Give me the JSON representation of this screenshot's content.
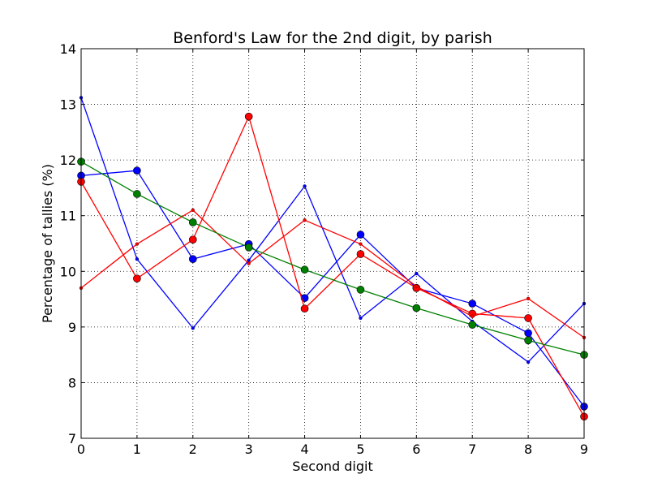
{
  "chart_data": {
    "type": "line",
    "title": "Benford's Law for the 2nd digit, by parish",
    "xlabel": "Second digit",
    "ylabel": "Percentage of tallies (%)",
    "xlim": [
      0,
      9
    ],
    "ylim": [
      7,
      14
    ],
    "xticks": [
      "0",
      "1",
      "2",
      "3",
      "4",
      "5",
      "6",
      "7",
      "8",
      "9"
    ],
    "yticks": [
      "7",
      "8",
      "9",
      "10",
      "11",
      "12",
      "13",
      "14"
    ],
    "grid": true,
    "x": [
      0,
      1,
      2,
      3,
      4,
      5,
      6,
      7,
      8,
      9
    ],
    "series": [
      {
        "color": "#0000ff",
        "marker": "large",
        "values": [
          11.72,
          11.81,
          10.22,
          10.49,
          9.52,
          10.66,
          9.7,
          9.42,
          8.89,
          7.57
        ]
      },
      {
        "color": "#0000ff",
        "marker": "small",
        "values": [
          13.12,
          10.22,
          8.98,
          10.2,
          11.53,
          9.16,
          9.96,
          9.1,
          8.37,
          9.42
        ]
      },
      {
        "color": "#ff0000",
        "marker": "large",
        "values": [
          11.61,
          9.87,
          10.57,
          12.78,
          9.33,
          10.31,
          9.7,
          9.24,
          9.16,
          7.39
        ]
      },
      {
        "color": "#ff0000",
        "marker": "small",
        "values": [
          9.7,
          10.49,
          11.1,
          10.14,
          10.92,
          10.49,
          9.73,
          9.19,
          9.51,
          8.81
        ]
      },
      {
        "color": "#008000",
        "marker": "large",
        "values": [
          11.97,
          11.39,
          10.88,
          10.43,
          10.03,
          9.67,
          9.34,
          9.04,
          8.76,
          8.5
        ]
      }
    ]
  }
}
